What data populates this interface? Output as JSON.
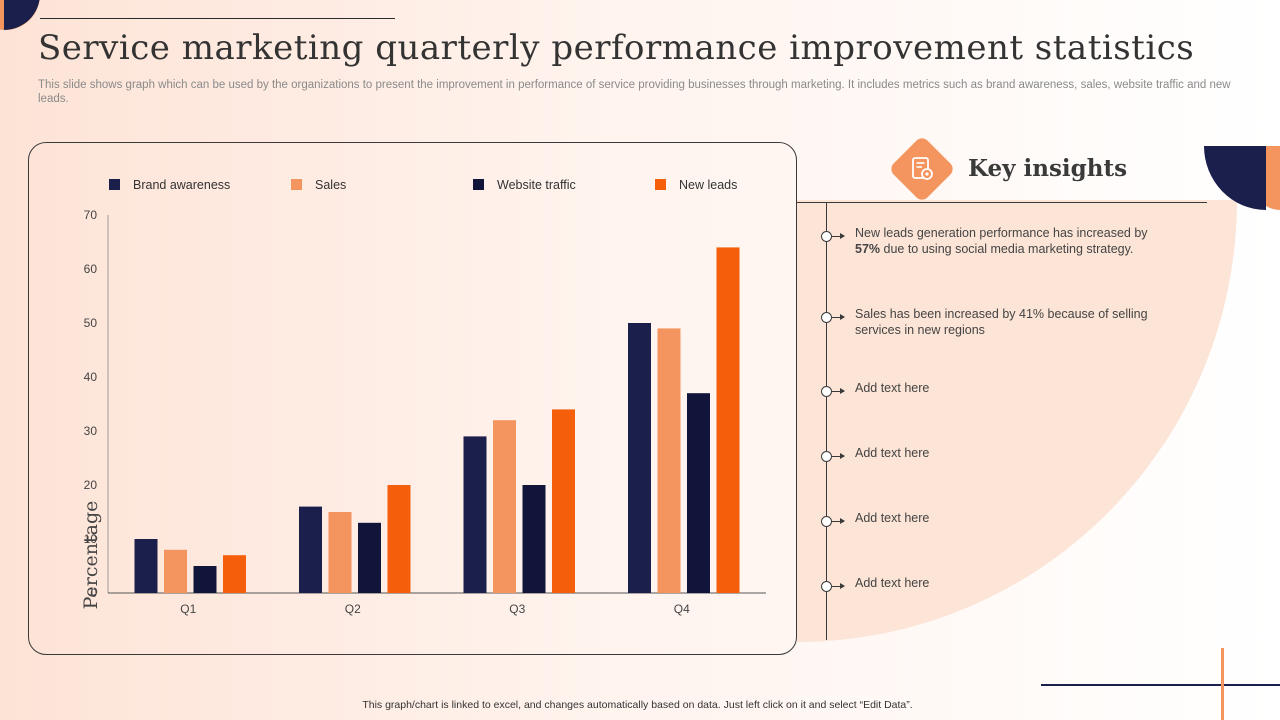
{
  "title": "Service marketing quarterly performance improvement statistics",
  "subtitle": "This slide shows graph which can be used by the organizations to present the improvement in performance of service providing businesses through marketing. It includes metrics such as brand awareness, sales, website traffic and new leads.",
  "colors": {
    "navy": "#1a1f4b",
    "light_orange": "#f4955f",
    "dark_navy": "#12153a",
    "orange": "#f55f0c",
    "accent_peach": "#fce4d6"
  },
  "chart_data": {
    "type": "bar",
    "categories": [
      "Q1",
      "Q2",
      "Q3",
      "Q4"
    ],
    "series": [
      {
        "name": "Brand awareness",
        "color": "#1a1f4b",
        "values": [
          10,
          16,
          29,
          50
        ]
      },
      {
        "name": "Sales",
        "color": "#f4955f",
        "values": [
          8,
          15,
          32,
          49
        ]
      },
      {
        "name": "Website traffic",
        "color": "#12153a",
        "values": [
          5,
          13,
          20,
          37
        ]
      },
      {
        "name": "New leads",
        "color": "#f55f0c",
        "values": [
          7,
          20,
          34,
          64
        ]
      }
    ],
    "ylabel": "Percentage",
    "xlabel": "",
    "ylim": [
      0,
      70
    ],
    "yticks": [
      0,
      10,
      20,
      30,
      40,
      50,
      60,
      70
    ],
    "legend_position": "top",
    "grid": false
  },
  "insights": {
    "title": "Key insights",
    "icon": "document-gear-icon",
    "items": [
      {
        "pre": "New leads generation performance has increased by ",
        "bold": "57%",
        "post": " due to using social media marketing strategy."
      },
      {
        "pre": "Sales has been increased by 41% because of selling services in new regions",
        "bold": "",
        "post": ""
      },
      {
        "pre": "Add text here",
        "bold": "",
        "post": ""
      },
      {
        "pre": "Add text here",
        "bold": "",
        "post": ""
      },
      {
        "pre": "Add text here",
        "bold": "",
        "post": ""
      },
      {
        "pre": "Add text here",
        "bold": "",
        "post": ""
      }
    ]
  },
  "footer_note": "This graph/chart is linked to excel, and changes automatically based on data. Just left click on it and select “Edit Data”."
}
